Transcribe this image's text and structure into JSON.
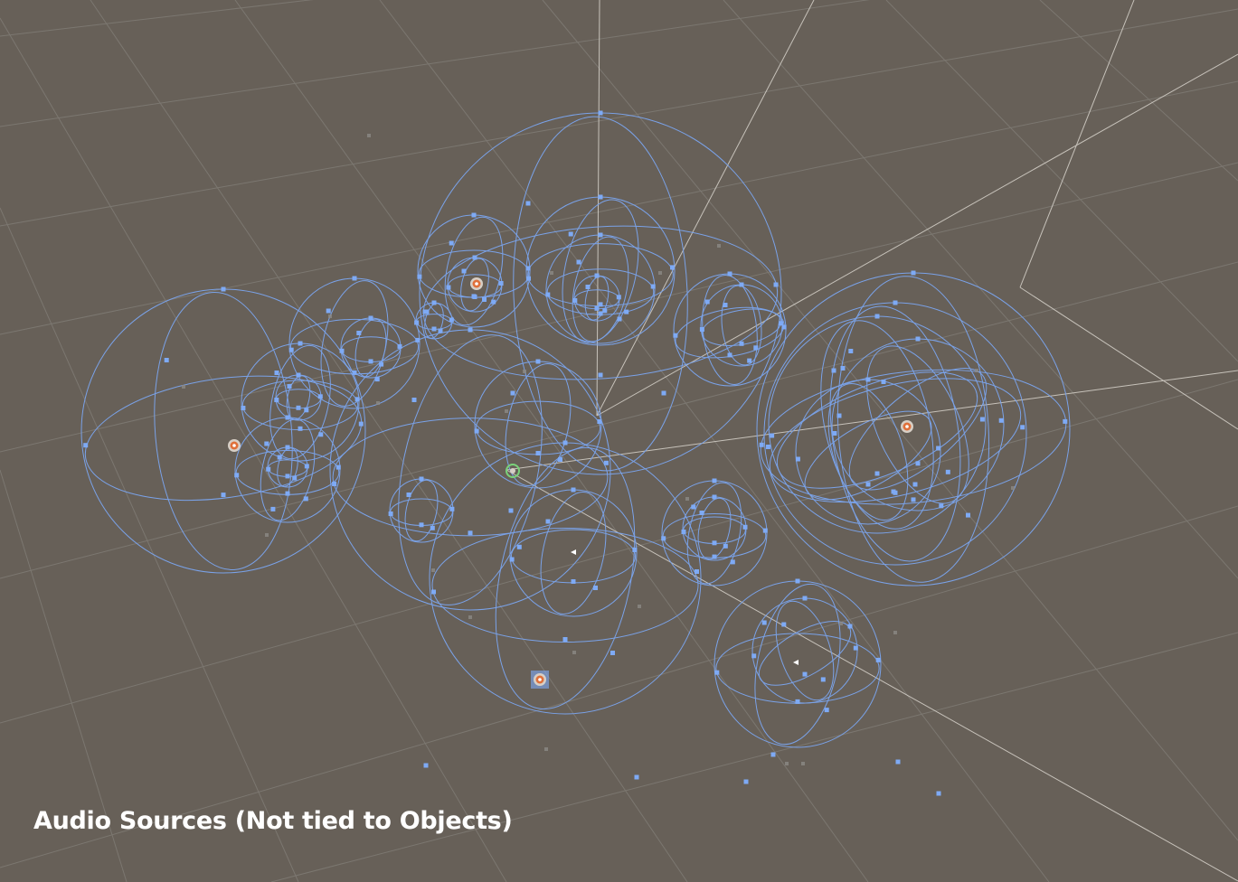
{
  "caption": "Audio Sources (Not tied to Objects)",
  "colors": {
    "background": "#676058",
    "grid": "#8a8680",
    "axis": "#d8d4cc",
    "gizmo_wire": "#7aa2e8",
    "gizmo_handle": "#7eaaf5",
    "source_icon": "#e0703a"
  },
  "icons": {
    "audio_source": "audio-source-icon",
    "selected_source": "selected-audio-source-icon",
    "camera_marker": "camera-marker-icon"
  }
}
